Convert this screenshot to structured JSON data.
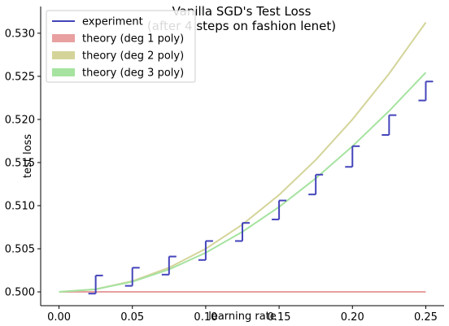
{
  "chart_data": {
    "type": "line",
    "title": "Vanilla SGD's Test Loss",
    "subtitle": "(after 4 steps on fashion lenet)",
    "xlabel": "learning rate",
    "ylabel": "test loss",
    "xlim": [
      -0.0125,
      0.2625
    ],
    "ylim": [
      0.4984,
      0.5331
    ],
    "xticks": [
      0.0,
      0.05,
      0.1,
      0.15,
      0.2,
      0.25
    ],
    "xtick_labels": [
      "0.00",
      "0.05",
      "0.10",
      "0.15",
      "0.20",
      "0.25"
    ],
    "yticks": [
      0.5,
      0.505,
      0.51,
      0.515,
      0.52,
      0.525,
      0.53
    ],
    "ytick_labels": [
      "0.500",
      "0.505",
      "0.510",
      "0.515",
      "0.520",
      "0.525",
      "0.530"
    ],
    "grid": false,
    "legend_position": "top-left",
    "series": [
      {
        "name": "experiment",
        "style": "errorbar",
        "color": "#4444bb",
        "x": [
          0.025,
          0.05,
          0.075,
          0.1,
          0.125,
          0.15,
          0.175,
          0.2,
          0.225,
          0.25
        ],
        "low": [
          0.4998,
          0.5007,
          0.502,
          0.5037,
          0.5059,
          0.5084,
          0.5113,
          0.5145,
          0.5182,
          0.5222
        ],
        "high": [
          0.5019,
          0.5028,
          0.5041,
          0.5059,
          0.508,
          0.5106,
          0.5136,
          0.5169,
          0.5205,
          0.5244
        ]
      },
      {
        "name": "theory (deg 1 poly)",
        "style": "line",
        "color": "#e8a0a0",
        "x": [
          0.0,
          0.25
        ],
        "y": [
          0.5,
          0.5
        ]
      },
      {
        "name": "theory (deg 2 poly)",
        "style": "line",
        "color": "#d4d49a",
        "x": [
          0.0,
          0.025,
          0.05,
          0.075,
          0.1,
          0.125,
          0.15,
          0.175,
          0.2,
          0.225,
          0.25
        ],
        "y": [
          0.5,
          0.50031,
          0.50125,
          0.50281,
          0.505,
          0.50781,
          0.51125,
          0.51531,
          0.52,
          0.52531,
          0.53125
        ]
      },
      {
        "name": "theory (deg 3 poly)",
        "style": "line",
        "color": "#a6e3a0",
        "x": [
          0.0,
          0.025,
          0.05,
          0.075,
          0.1,
          0.125,
          0.15,
          0.175,
          0.2,
          0.225,
          0.25
        ],
        "y": [
          0.5,
          0.5003,
          0.50118,
          0.5026,
          0.50454,
          0.50697,
          0.50985,
          0.51317,
          0.51689,
          0.52098,
          0.52545
        ]
      }
    ]
  }
}
